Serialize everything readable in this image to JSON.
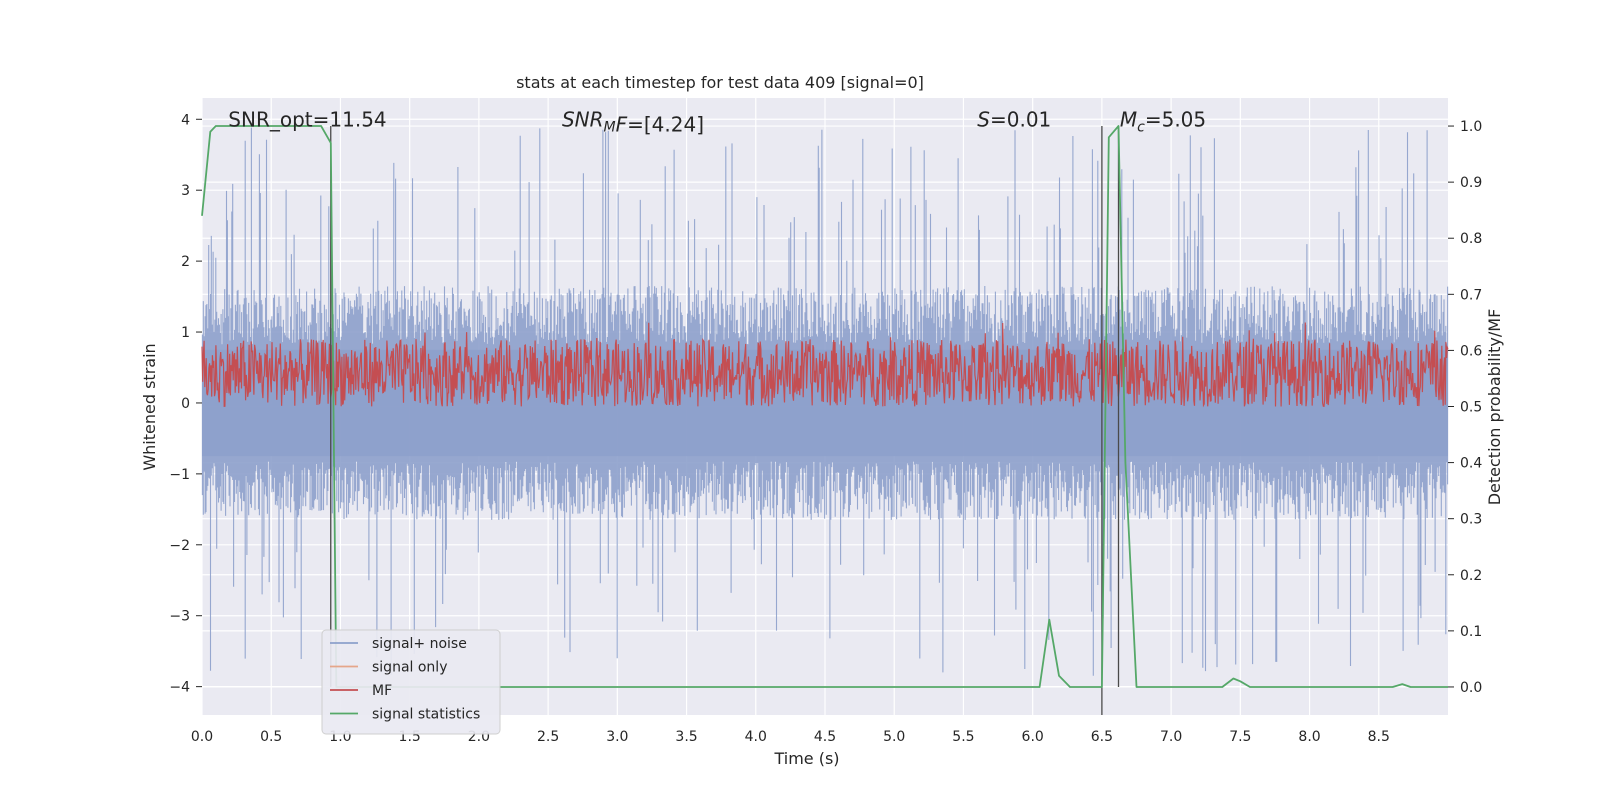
{
  "chart_data": {
    "type": "line",
    "title": "stats at each timestep for test data 409 [signal=0]",
    "xlabel": "Time (s)",
    "ylabel": "Whitened strain",
    "y2label": "Detection probability/MF",
    "xlim": [
      0.0,
      9.0
    ],
    "ylim": [
      -4.4,
      4.3
    ],
    "y2lim": [
      -0.05,
      1.05
    ],
    "grid": true,
    "legend_loc": "lower left",
    "xticks": [
      "0.0",
      "0.5",
      "1.0",
      "1.5",
      "2.0",
      "2.5",
      "3.0",
      "3.5",
      "4.0",
      "4.5",
      "5.0",
      "5.5",
      "6.0",
      "6.5",
      "7.0",
      "7.5",
      "8.0",
      "8.5"
    ],
    "yticks": [
      "−4",
      "−3",
      "−2",
      "−1",
      "0",
      "1",
      "2",
      "3",
      "4"
    ],
    "y2ticks": [
      "0.0",
      "0.1",
      "0.2",
      "0.3",
      "0.4",
      "0.5",
      "0.6",
      "0.7",
      "0.8",
      "0.9",
      "1.0"
    ],
    "annotations": [
      {
        "id": "snr-opt",
        "text": "SNR_opt=11.54",
        "x": 0.19,
        "y": 4.0
      },
      {
        "id": "snr-mf",
        "text": "SNR",
        "sub": "M",
        "rest": "F=[4.24]",
        "italic": true,
        "x": 2.6,
        "y": 4.0
      },
      {
        "id": "s-val",
        "text": "S",
        "rest": "=0.01",
        "x": 5.6,
        "y": 4.0
      },
      {
        "id": "mc-val",
        "text": "M",
        "sub": "c",
        "rest": "=5.05",
        "x": 6.63,
        "y": 4.0
      }
    ],
    "vlines_y2": [
      {
        "x": 0.93,
        "y2": [
          0.0,
          1.0
        ]
      },
      {
        "x": 6.5,
        "y2": [
          -0.05,
          1.0
        ]
      },
      {
        "x": 6.62,
        "y2": [
          0.0,
          1.0
        ]
      }
    ],
    "series": [
      {
        "name": "signal+ noise",
        "color": "#8da0cb",
        "axis": "left",
        "envelope": {
          "upper_typical": 1.5,
          "lower_typical": -1.5,
          "upper_peak": 3.9,
          "lower_peak": -3.85
        }
      },
      {
        "name": "signal only",
        "color": "#e5a68a",
        "axis": "left",
        "values": []
      },
      {
        "name": "MF",
        "color": "#c44e52",
        "axis": "right",
        "band": [
          0.5,
          0.62
        ],
        "peak": 0.65
      },
      {
        "name": "signal statistics",
        "color": "#55a868",
        "axis": "right",
        "x": [
          0.0,
          0.06,
          0.1,
          0.86,
          0.93,
          0.97,
          1.0,
          6.05,
          6.12,
          6.19,
          6.27,
          6.5,
          6.55,
          6.62,
          6.67,
          6.75,
          7.37,
          7.45,
          7.5,
          7.57,
          8.6,
          8.67,
          8.73,
          9.0
        ],
        "y2": [
          0.84,
          0.99,
          1.0,
          1.0,
          0.97,
          0.0,
          0.0,
          0.0,
          0.12,
          0.02,
          0.0,
          0.0,
          0.98,
          1.0,
          0.4,
          0.0,
          0.0,
          0.015,
          0.01,
          0.0,
          0.0,
          0.005,
          0.0,
          0.0
        ]
      }
    ]
  }
}
